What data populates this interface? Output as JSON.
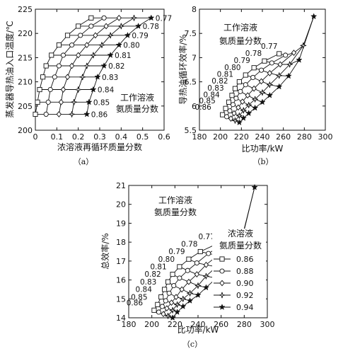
{
  "legend": {
    "title_line1": "浓溶液",
    "title_line2": "氨质量分数",
    "entries": [
      {
        "label": "0.86",
        "marker": "square"
      },
      {
        "label": "0.88",
        "marker": "circle"
      },
      {
        "label": "0.90",
        "marker": "diamond"
      },
      {
        "label": "0.92",
        "marker": "star4"
      },
      {
        "label": "0.94",
        "marker": "star5"
      }
    ]
  },
  "chart_data": [
    {
      "type": "line",
      "caption": "（a）",
      "xlabel": "浓溶液再循环质量分数",
      "ylabel": "蒸发器导热油入口温度/℃",
      "xlim": [
        0,
        0.6
      ],
      "ylim": [
        200,
        225
      ],
      "xticks": [
        "0",
        "0.1",
        "0.2",
        "0.3",
        "0.4",
        "0.5",
        "0.6"
      ],
      "yticks": [
        "200",
        "205",
        "210",
        "215",
        "220",
        "225"
      ],
      "annotation_line1": "工作溶液",
      "annotation_line2": "氨质量分数",
      "row_labels": [
        "0.77",
        "0.78",
        "0.79",
        "0.80",
        "0.81",
        "0.82",
        "0.83",
        "0.84",
        "0.85",
        "0.86"
      ],
      "series": [
        {
          "x": [
            0.26,
            0.2,
            0.15,
            0.11,
            0.075,
            0.05,
            0.035,
            0.02,
            0.01,
            0.0
          ],
          "y": [
            223.2,
            221.5,
            219.6,
            217.6,
            215.5,
            213.3,
            211.0,
            208.4,
            205.8,
            203.3
          ]
        },
        {
          "x": [
            0.32,
            0.26,
            0.21,
            0.17,
            0.13,
            0.11,
            0.09,
            0.07,
            0.06,
            0.05
          ],
          "y": [
            223.2,
            221.5,
            219.6,
            217.6,
            215.5,
            213.3,
            211.0,
            208.4,
            205.8,
            203.3
          ]
        },
        {
          "x": [
            0.39,
            0.33,
            0.28,
            0.24,
            0.2,
            0.17,
            0.15,
            0.13,
            0.12,
            0.11
          ],
          "y": [
            223.2,
            221.5,
            219.6,
            217.6,
            215.5,
            213.3,
            211.0,
            208.4,
            205.8,
            203.3
          ]
        },
        {
          "x": [
            0.46,
            0.4,
            0.35,
            0.31,
            0.27,
            0.24,
            0.22,
            0.2,
            0.18,
            0.17
          ],
          "y": [
            223.2,
            221.5,
            219.6,
            217.6,
            215.5,
            213.3,
            211.0,
            208.4,
            205.8,
            203.3
          ]
        },
        {
          "x": [
            0.54,
            0.48,
            0.43,
            0.39,
            0.35,
            0.32,
            0.29,
            0.27,
            0.25,
            0.24
          ],
          "y": [
            223.2,
            221.5,
            219.6,
            217.6,
            215.5,
            213.3,
            211.0,
            208.4,
            205.8,
            203.3
          ]
        }
      ]
    },
    {
      "type": "line",
      "caption": "（b）",
      "xlabel": "比功率/kW",
      "ylabel": "导热油循环效率/%",
      "xlim": [
        180,
        300
      ],
      "ylim": [
        5.5,
        8
      ],
      "xticks": [
        "180",
        "200",
        "220",
        "240",
        "260",
        "280",
        "300"
      ],
      "yticks": [
        "5.5",
        "6",
        "6.5",
        "7",
        "7.5",
        "8"
      ],
      "annotation_line1": "工作溶液",
      "annotation_line2": "氨质量分数",
      "row_labels": [
        "0.77",
        "0.78",
        "0.79",
        "0.80",
        "0.81",
        "0.82",
        "0.83",
        "0.84",
        "0.85",
        "0.86"
      ],
      "series": [
        {
          "x": [
            202,
            205,
            208,
            211,
            214,
            218,
            224,
            232,
            242,
            256
          ],
          "y": [
            5.82,
            5.95,
            6.08,
            6.22,
            6.36,
            6.5,
            6.64,
            6.79,
            6.93,
            7.08
          ]
        },
        {
          "x": [
            206,
            209,
            212,
            215,
            219,
            224,
            231,
            239,
            249,
            262
          ],
          "y": [
            5.78,
            5.9,
            6.03,
            6.16,
            6.3,
            6.44,
            6.59,
            6.74,
            6.89,
            7.05
          ]
        },
        {
          "x": [
            210,
            213,
            217,
            221,
            226,
            232,
            239,
            247,
            257,
            270
          ],
          "y": [
            5.74,
            5.85,
            5.97,
            6.09,
            6.22,
            6.36,
            6.51,
            6.68,
            6.86,
            7.1
          ]
        },
        {
          "x": [
            214,
            218,
            222,
            227,
            233,
            240,
            247,
            256,
            266,
            279
          ],
          "y": [
            5.7,
            5.8,
            5.91,
            6.02,
            6.14,
            6.28,
            6.44,
            6.63,
            6.86,
            7.25
          ]
        },
        {
          "x": [
            218,
            222,
            227,
            233,
            240,
            247,
            256,
            265,
            275,
            289
          ],
          "y": [
            5.66,
            5.75,
            5.85,
            5.96,
            6.08,
            6.22,
            6.4,
            6.62,
            6.95,
            7.85
          ]
        }
      ]
    },
    {
      "type": "line",
      "caption": "（c）",
      "xlabel": "比功率/kW",
      "ylabel": "总效率/%",
      "xlim": [
        180,
        300
      ],
      "ylim": [
        14,
        21
      ],
      "xticks": [
        "180",
        "200",
        "220",
        "240",
        "260",
        "280",
        "300"
      ],
      "yticks": [
        "14",
        "15",
        "16",
        "17",
        "18",
        "19",
        "20",
        "21"
      ],
      "annotation_line1": "工作溶液",
      "annotation_line2": "氨质量分数",
      "row_labels": [
        "0.77",
        "0.78",
        "0.79",
        "0.80",
        "0.81",
        "0.82",
        "0.83",
        "0.84",
        "0.85",
        "0.86"
      ],
      "series": [
        {
          "x": [
            202,
            205,
            208,
            211,
            214,
            218,
            224,
            232,
            242,
            256
          ],
          "y": [
            14.4,
            14.7,
            15.1,
            15.5,
            15.9,
            16.3,
            16.7,
            17.1,
            17.5,
            17.9
          ]
        },
        {
          "x": [
            206,
            209,
            212,
            215,
            219,
            224,
            231,
            239,
            249,
            262
          ],
          "y": [
            14.3,
            14.6,
            14.9,
            15.3,
            15.7,
            16.1,
            16.5,
            16.9,
            17.4,
            17.9
          ]
        },
        {
          "x": [
            210,
            213,
            217,
            221,
            226,
            232,
            239,
            247,
            257,
            270
          ],
          "y": [
            14.2,
            14.5,
            14.8,
            15.1,
            15.5,
            15.9,
            16.3,
            16.8,
            17.3,
            18.0
          ]
        },
        {
          "x": [
            214,
            218,
            222,
            227,
            233,
            240,
            247,
            256,
            266,
            279
          ],
          "y": [
            14.1,
            14.4,
            14.7,
            15.0,
            15.3,
            15.7,
            16.2,
            16.7,
            17.3,
            18.4
          ]
        },
        {
          "x": [
            218,
            222,
            227,
            233,
            240,
            247,
            256,
            265,
            275,
            289
          ],
          "y": [
            14.0,
            14.3,
            14.6,
            14.9,
            15.2,
            15.6,
            16.1,
            16.7,
            17.5,
            20.9
          ]
        }
      ]
    }
  ]
}
